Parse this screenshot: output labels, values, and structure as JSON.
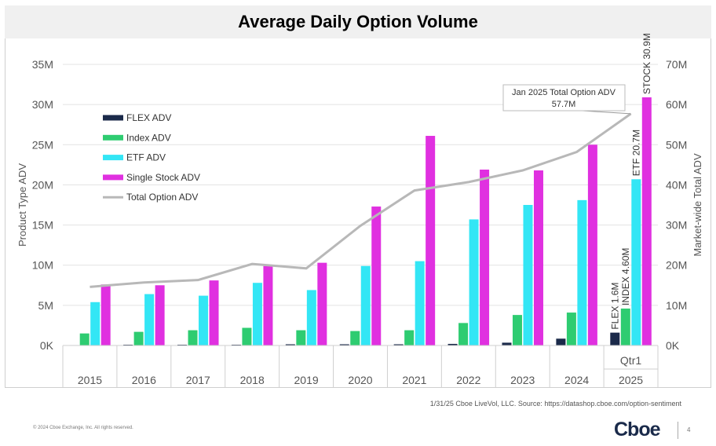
{
  "page": {
    "title": "Average Daily Option Volume",
    "source_note": "1/31/25 Cboe LiveVol, LLC. Source: https://datashop.cboe.com/option-sentiment",
    "copyright": "© 2024 Cboe Exchange, Inc. All rights reserved.",
    "brand": "Cboe",
    "page_number": "4"
  },
  "chart_data": {
    "type": "bar",
    "title": "Average Daily Option Volume",
    "categories": [
      "2015",
      "2016",
      "2017",
      "2018",
      "2019",
      "2020",
      "2021",
      "2022",
      "2023",
      "2024",
      "2025"
    ],
    "sub_labels": [
      "",
      "",
      "",
      "",
      "",
      "",
      "",
      "",
      "",
      "",
      "Qtr1"
    ],
    "ylabel": "Product Type ADV",
    "y2label": "Market-wide Total ADV",
    "ylim": [
      0,
      35
    ],
    "y2lim": [
      0,
      70
    ],
    "yticks": [
      "0K",
      "5M",
      "10M",
      "15M",
      "20M",
      "25M",
      "30M",
      "35M"
    ],
    "y2ticks": [
      "0K",
      "10M",
      "20M",
      "30M",
      "40M",
      "50M",
      "60M",
      "70M"
    ],
    "unit": "millions",
    "series": [
      {
        "name": "FLEX ADV",
        "color": "#1b2a4a",
        "axis": "left",
        "values": [
          0.05,
          0.1,
          0.1,
          0.1,
          0.15,
          0.15,
          0.15,
          0.2,
          0.35,
          0.85,
          1.6
        ]
      },
      {
        "name": "Index ADV",
        "color": "#2ecc71",
        "axis": "left",
        "values": [
          1.5,
          1.7,
          1.9,
          2.2,
          1.9,
          1.8,
          1.9,
          2.8,
          3.8,
          4.1,
          4.6
        ]
      },
      {
        "name": "ETF ADV",
        "color": "#33e6f5",
        "axis": "left",
        "values": [
          5.4,
          6.4,
          6.2,
          7.8,
          6.9,
          9.9,
          10.5,
          15.7,
          17.5,
          18.1,
          20.7
        ]
      },
      {
        "name": "Single Stock ADV",
        "color": "#e030e0",
        "axis": "left",
        "values": [
          7.6,
          7.5,
          8.1,
          9.9,
          10.3,
          17.3,
          26.1,
          21.9,
          21.8,
          25.0,
          30.9
        ]
      },
      {
        "name": "Total Option ADV",
        "color": "#b8b8b8",
        "type": "line",
        "axis": "right",
        "values": [
          14.6,
          15.7,
          16.3,
          20.3,
          19.2,
          29.8,
          38.6,
          40.7,
          43.6,
          48.2,
          57.7
        ]
      }
    ],
    "data_labels": [
      "FLEX 1.6M",
      "INDEX 4.60M",
      "ETF 20.7M",
      "STOCK 30.9M"
    ],
    "callout": {
      "line1": "Jan 2025 Total Option ADV",
      "line2": "57.7M"
    },
    "legend_position": "top-left"
  }
}
